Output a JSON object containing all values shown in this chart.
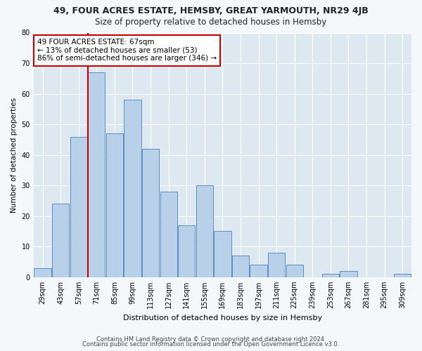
{
  "title": "49, FOUR ACRES ESTATE, HEMSBY, GREAT YARMOUTH, NR29 4JB",
  "subtitle": "Size of property relative to detached houses in Hemsby",
  "xlabel": "Distribution of detached houses by size in Hemsby",
  "ylabel": "Number of detached properties",
  "categories": [
    "29sqm",
    "43sqm",
    "57sqm",
    "71sqm",
    "85sqm",
    "99sqm",
    "113sqm",
    "127sqm",
    "141sqm",
    "155sqm",
    "169sqm",
    "183sqm",
    "197sqm",
    "211sqm",
    "225sqm",
    "239sqm",
    "253sqm",
    "267sqm",
    "281sqm",
    "295sqm",
    "309sqm"
  ],
  "values": [
    3,
    24,
    46,
    67,
    47,
    58,
    42,
    28,
    17,
    30,
    15,
    7,
    4,
    8,
    4,
    0,
    1,
    2,
    0,
    0,
    1
  ],
  "bar_color": "#b8d0e8",
  "bar_edge_color": "#5b8cc4",
  "annotation_text": "49 FOUR ACRES ESTATE: 67sqm\n← 13% of detached houses are smaller (53)\n86% of semi-detached houses are larger (346) →",
  "annotation_box_color": "#ffffff",
  "annotation_box_edge_color": "#cc0000",
  "vline_color": "#cc0000",
  "plot_bg_color": "#dde8f0",
  "fig_bg_color": "#f5f8fb",
  "grid_color": "#ffffff",
  "ylim": [
    0,
    80
  ],
  "yticks": [
    0,
    10,
    20,
    30,
    40,
    50,
    60,
    70,
    80
  ],
  "footer_line1": "Contains HM Land Registry data © Crown copyright and database right 2024.",
  "footer_line2": "Contains public sector information licensed under the Open Government Licence v3.0."
}
